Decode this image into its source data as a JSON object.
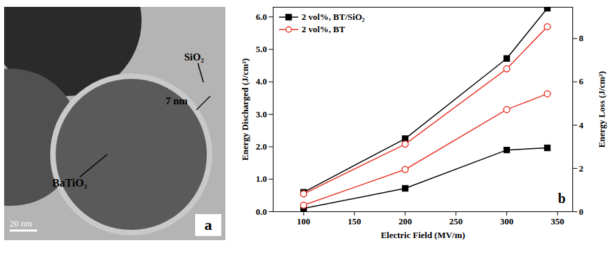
{
  "chart_data": {
    "type": "line",
    "panel_label": "b",
    "x_label": "Electric Field (MV/m)",
    "y_label": "Energy Discharged (J/cm³)",
    "y2_label": "Energy Loss (J/cm³)",
    "x": [
      100,
      200,
      300,
      340
    ],
    "xlim": [
      70,
      365
    ],
    "xticks": [
      100,
      150,
      200,
      250,
      300,
      350
    ],
    "ylim": [
      0,
      6.3
    ],
    "yticks": [
      0,
      1,
      2,
      3,
      4,
      5,
      6
    ],
    "y2lim": [
      0,
      9.45
    ],
    "y2ticks": [
      0,
      2,
      4,
      6,
      8
    ],
    "legend": "upper left",
    "series": [
      {
        "name": "2 vol%, BT/SiO₂",
        "color": "#000000",
        "marker": "square",
        "line_style": "solid",
        "values": [
          0.6,
          2.25,
          4.72,
          6.27
        ]
      },
      {
        "name": "2 vol%, BT",
        "color": "#e8382c",
        "marker": "circle-open",
        "line_style": "solid",
        "values": [
          0.55,
          2.08,
          4.4,
          5.7
        ]
      },
      {
        "name": "2 vol%, BT/SiO₂",
        "color": "#000000",
        "marker": "square",
        "line_style": "solid",
        "axis": "y2",
        "values": [
          0.15,
          1.08,
          2.85,
          2.95
        ]
      },
      {
        "name": "2 vol%, BT",
        "color": "#e8382c",
        "marker": "circle-open",
        "line_style": "solid",
        "axis": "y2",
        "values": [
          0.3,
          1.95,
          4.72,
          5.45
        ]
      }
    ]
  },
  "image_panel": {
    "letter": "a",
    "labels": [
      "SiO₂",
      "7 nm",
      "BaTiO₃"
    ],
    "scale_bar": "20 nm"
  }
}
